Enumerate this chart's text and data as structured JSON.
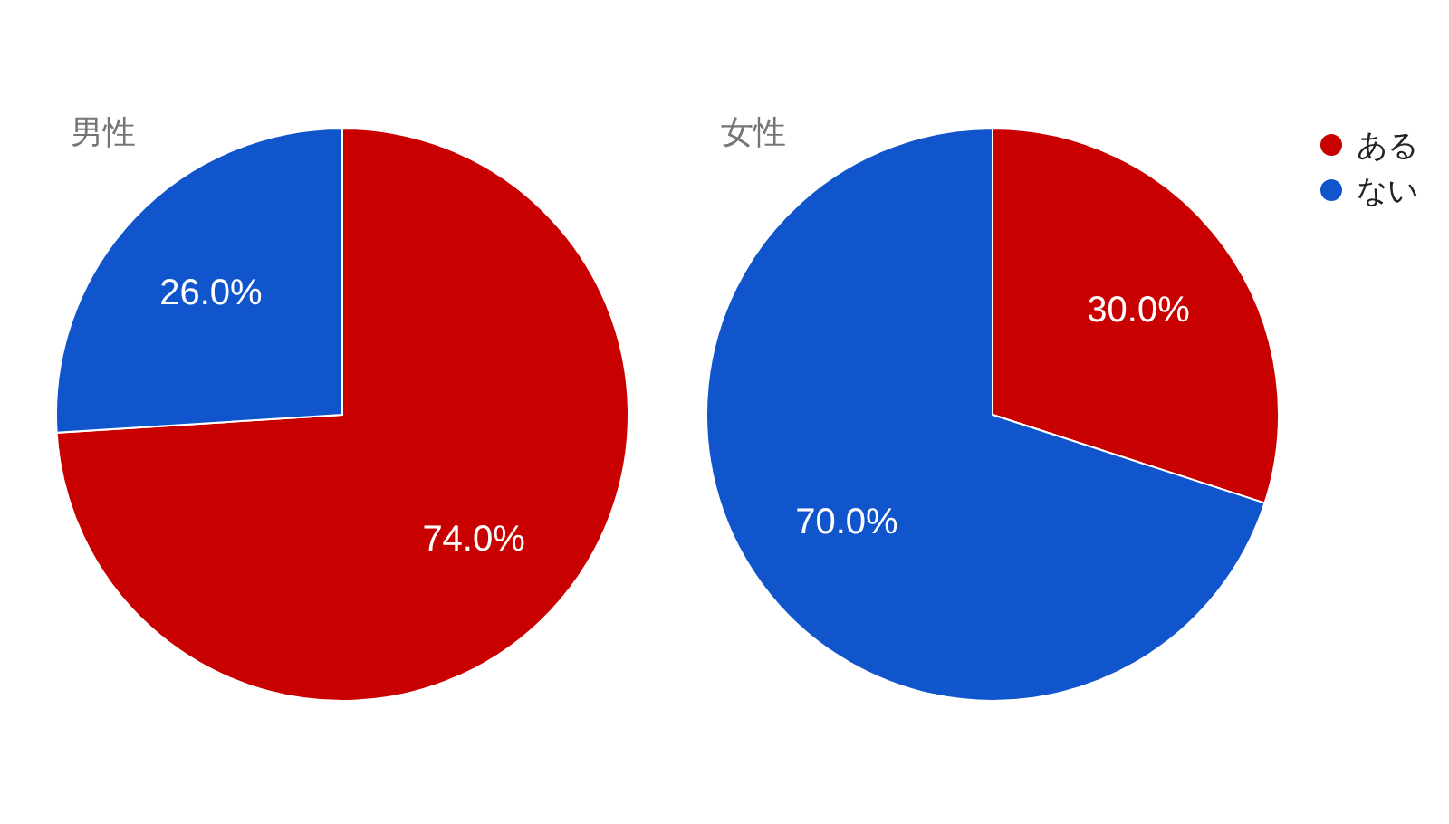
{
  "chart_data": [
    {
      "type": "pie",
      "title": "男性",
      "categories": [
        "ある",
        "ない"
      ],
      "values": [
        74.0,
        26.0
      ],
      "colors": [
        "#c90000",
        "#1155cc"
      ],
      "value_labels": [
        "74.0%",
        "26.0%"
      ],
      "legend": "top right"
    },
    {
      "type": "pie",
      "title": "女性",
      "categories": [
        null,
        null
      ],
      "values": [
        30.0,
        70.0
      ],
      "colors": [
        "#c90000",
        "#1155cc"
      ],
      "value_labels": [
        "30.0%",
        "70.0%"
      ]
    }
  ]
}
